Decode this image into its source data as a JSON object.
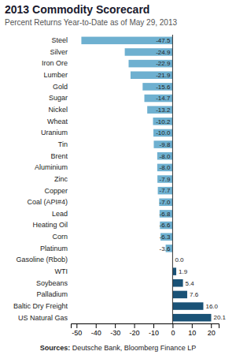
{
  "chart_data": {
    "type": "bar",
    "orientation": "horizontal",
    "title": "2013 Commodity Scorecard",
    "subtitle": "Percent Returns Year-to-Date as of May 29, 2013",
    "annotations": [
      "Sources:",
      " Deutsche Bank, Bloomberg Finance LP"
    ],
    "categories": [
      "Steel",
      "Silver",
      "Iron Ore",
      "Lumber",
      "Gold",
      "Sugar",
      "Nickel",
      "Wheat",
      "Uranium",
      "Tin",
      "Brent",
      "Aluminium",
      "Zinc",
      "Copper",
      "Coal (API#4)",
      "Lead",
      "Heating Oil",
      "Corn",
      "Platinum",
      "Gasoline (Rbob)",
      "WTI",
      "Soybeans",
      "Palladium",
      "Baltic Dry Freight",
      "US Natural Gas"
    ],
    "values": [
      -47.5,
      -24.9,
      -22.9,
      -21.9,
      -15.6,
      -14.7,
      -13.2,
      -10.2,
      -10.0,
      -9.8,
      -8.0,
      -8.0,
      -7.9,
      -7.7,
      -7.0,
      -6.8,
      -6.6,
      -6.3,
      -3.6,
      0.0,
      1.9,
      5.4,
      7.6,
      16.0,
      20.1
    ],
    "value_labels": [
      "-47.5",
      "-24.9",
      "-22.9",
      "-21.9",
      "-15.6",
      "-14.7",
      "-13.2",
      "-10.2",
      "-10.0",
      "-9.8",
      "-8.0",
      "-8.0",
      "-7.9",
      "-7.7",
      "-7.0",
      "-6.8",
      "-6.6",
      "-6.3",
      "-3.6",
      "0.0",
      "1.9",
      "5.4",
      "7.6",
      "16.0",
      "20.1"
    ],
    "colors": [
      "#6eb0d0",
      "#6eb0d0",
      "#6eb0d0",
      "#6eb0d0",
      "#6eb0d0",
      "#6eb0d0",
      "#6eb0d0",
      "#6eb0d0",
      "#6eb0d0",
      "#6eb0d0",
      "#6eb0d0",
      "#6eb0d0",
      "#6eb0d0",
      "#6eb0d0",
      "#6eb0d0",
      "#6eb0d0",
      "#6eb0d0",
      "#6eb0d0",
      "#6eb0d0",
      "#6eb0d0",
      "#1a5276",
      "#1a5276",
      "#1a5276",
      "#1a5276",
      "#1a5276"
    ],
    "xlim": [
      -53,
      24
    ],
    "xticks": [
      -50,
      -40,
      -30,
      -20,
      -10,
      0,
      10,
      20
    ],
    "data_labels": true,
    "grid": false
  }
}
